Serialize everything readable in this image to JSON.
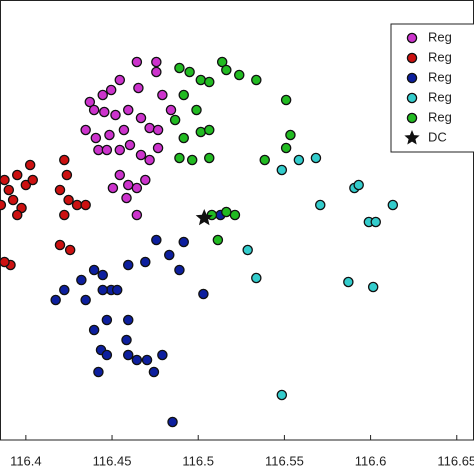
{
  "chart_data": {
    "type": "scatter",
    "xlim": [
      116.385,
      116.66
    ],
    "xticks": [
      116.4,
      116.45,
      116.5,
      116.55,
      116.6,
      116.65
    ],
    "ylim": [
      0,
      440
    ],
    "legend": "upper right",
    "series": [
      {
        "name": "Reg",
        "color": "#cc33cc",
        "marker": "circle",
        "x": [
          116.4644,
          116.4757,
          116.4757,
          116.4653,
          116.4545,
          116.4495,
          116.4446,
          116.4371,
          116.4396,
          116.4455,
          116.452,
          116.4594,
          116.4668,
          116.4718,
          116.4767,
          116.4569,
          116.4485,
          116.4406,
          116.4347,
          116.4421,
          116.447,
          116.4545,
          116.4604,
          116.4668,
          116.4718,
          116.4545,
          116.4594,
          116.4644,
          116.4505,
          116.4584,
          116.4644,
          116.4693,
          116.4767,
          116.4842,
          116.4792
        ],
        "values": [
          378,
          378,
          368,
          352,
          360,
          350,
          345,
          338,
          330,
          328,
          325,
          330,
          322,
          312,
          310,
          310,
          305,
          302,
          310,
          290,
          290,
          290,
          295,
          285,
          280,
          265,
          255,
          252,
          252,
          242,
          225,
          260,
          292,
          330,
          345
        ]
      },
      {
        "name": "Reg",
        "color": "#cc1111",
        "marker": "circle",
        "x": [
          116.3876,
          116.3901,
          116.395,
          116.4,
          116.404,
          116.3926,
          116.3975,
          116.3855,
          116.4025,
          116.4223,
          116.4238,
          116.4198,
          116.4248,
          116.4297,
          116.4347,
          116.4223,
          116.4198,
          116.4257,
          116.3911,
          116.3876,
          116.395
        ],
        "values": [
          260,
          250,
          265,
          255,
          260,
          240,
          232,
          235,
          275,
          280,
          265,
          250,
          240,
          235,
          235,
          225,
          195,
          190,
          175,
          178,
          225
        ]
      },
      {
        "name": "Reg",
        "color": "#0d1f9e",
        "marker": "circle",
        "x": [
          116.4757,
          116.4916,
          116.4832,
          116.4891,
          116.4693,
          116.4594,
          116.4446,
          116.4396,
          116.4322,
          116.4495,
          116.4446,
          116.453,
          116.4223,
          116.4173,
          116.4347,
          116.447,
          116.4594,
          116.4396,
          116.4584,
          116.4436,
          116.4594,
          116.447,
          116.4421,
          116.4644,
          116.4703,
          116.4743,
          116.4792,
          116.503,
          116.4851,
          116.5129
        ],
        "values": [
          200,
          198,
          185,
          170,
          178,
          175,
          165,
          170,
          160,
          150,
          150,
          150,
          150,
          140,
          140,
          120,
          120,
          110,
          100,
          90,
          85,
          85,
          68,
          80,
          80,
          68,
          85,
          146,
          18,
          225
        ]
      },
      {
        "name": "Reg",
        "color": "#33cccc",
        "marker": "circle",
        "x": [
          116.5584,
          116.5683,
          116.5485,
          116.5708,
          116.5906,
          116.5931,
          116.6129,
          116.599,
          116.603,
          116.5287,
          116.5337,
          116.5871,
          116.6015,
          116.5485
        ],
        "values": [
          280,
          282,
          270,
          235,
          252,
          255,
          235,
          218,
          218,
          190,
          162,
          158,
          153,
          45
        ]
      },
      {
        "name": "Reg",
        "color": "#22bb22",
        "marker": "circle",
        "x": [
          116.4891,
          116.495,
          116.5015,
          116.5139,
          116.5163,
          116.5238,
          116.5337,
          116.5064,
          116.4916,
          116.499,
          116.4866,
          116.4916,
          116.5015,
          116.5064,
          116.4965,
          116.4891,
          116.5064,
          116.5163,
          116.5079,
          116.5213,
          116.551,
          116.5535,
          116.551,
          116.5114,
          116.5386
        ],
        "values": [
          372,
          368,
          360,
          378,
          370,
          365,
          360,
          358,
          345,
          330,
          320,
          302,
          308,
          310,
          280,
          282,
          282,
          228,
          225,
          225,
          340,
          305,
          292,
          200,
          280
        ]
      },
      {
        "name": "DC",
        "color": "#111111",
        "marker": "star",
        "x": [
          116.5035
        ],
        "values": [
          222
        ]
      }
    ]
  }
}
